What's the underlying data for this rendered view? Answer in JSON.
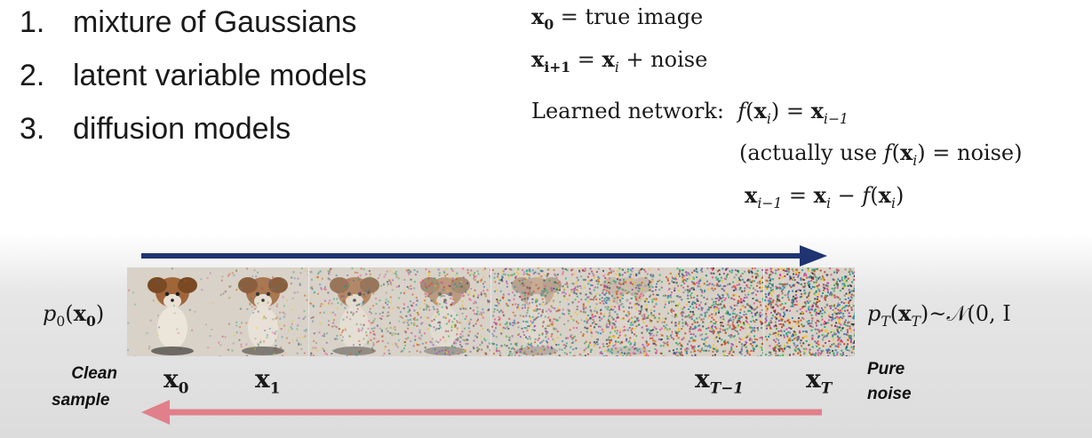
{
  "list": [
    {
      "num": "1.",
      "text": "mixture of Gaussians"
    },
    {
      "num": "2.",
      "text": "latent variable models"
    },
    {
      "num": "3.",
      "text": "diffusion models"
    }
  ],
  "equations": {
    "eq1_lhs": "x",
    "eq1_sub": "0",
    "eq1_rhs": " = true image",
    "eq2_a": "x",
    "eq2_a_sub": "i+1",
    "eq2_eq": " = ",
    "eq2_b": "x",
    "eq2_b_sub": "i",
    "eq2_rest": " + noise",
    "learned_label": "Learned network:",
    "learned_f": "f",
    "learned_open": "(",
    "learned_x": "x",
    "learned_x_sub": "i",
    "learned_close": ") = ",
    "learned_out": "x",
    "learned_out_sub": "i−1",
    "actually_prefix": "(actually use ",
    "actually_f": "f",
    "actually_open": "(",
    "actually_x": "x",
    "actually_x_sub": "i",
    "actually_suffix": ") = noise)",
    "update_lhs": "x",
    "update_lhs_sub": "i−1",
    "update_eq": " = ",
    "update_x": "x",
    "update_x_sub": "i",
    "update_minus": " − ",
    "update_f": "f",
    "update_open": "(",
    "update_fx": "x",
    "update_fx_sub": "i",
    "update_close": ")"
  },
  "diagram": {
    "left_dist_p": "p",
    "left_dist_sub": "0",
    "left_dist_open": "(",
    "left_dist_x": "x",
    "left_dist_xsub": "0",
    "left_dist_close": ")",
    "right_dist_p": "p",
    "right_dist_sub": "T",
    "right_dist_open": "(",
    "right_dist_x": "x",
    "right_dist_xsub": "T",
    "right_dist_rest": ")~𝒩(0, I",
    "clean_line1": "Clean",
    "clean_line2": "sample",
    "pure_line1": "Pure",
    "pure_line2": "noise",
    "labels": [
      {
        "base": "x",
        "sub": "0"
      },
      {
        "base": "x",
        "sub": "1"
      },
      {
        "base": "x",
        "sub": "T−1"
      },
      {
        "base": "x",
        "sub": "T"
      }
    ],
    "forward_arrow_color": "#1f3470",
    "reverse_arrow_color": "#e0808a"
  }
}
